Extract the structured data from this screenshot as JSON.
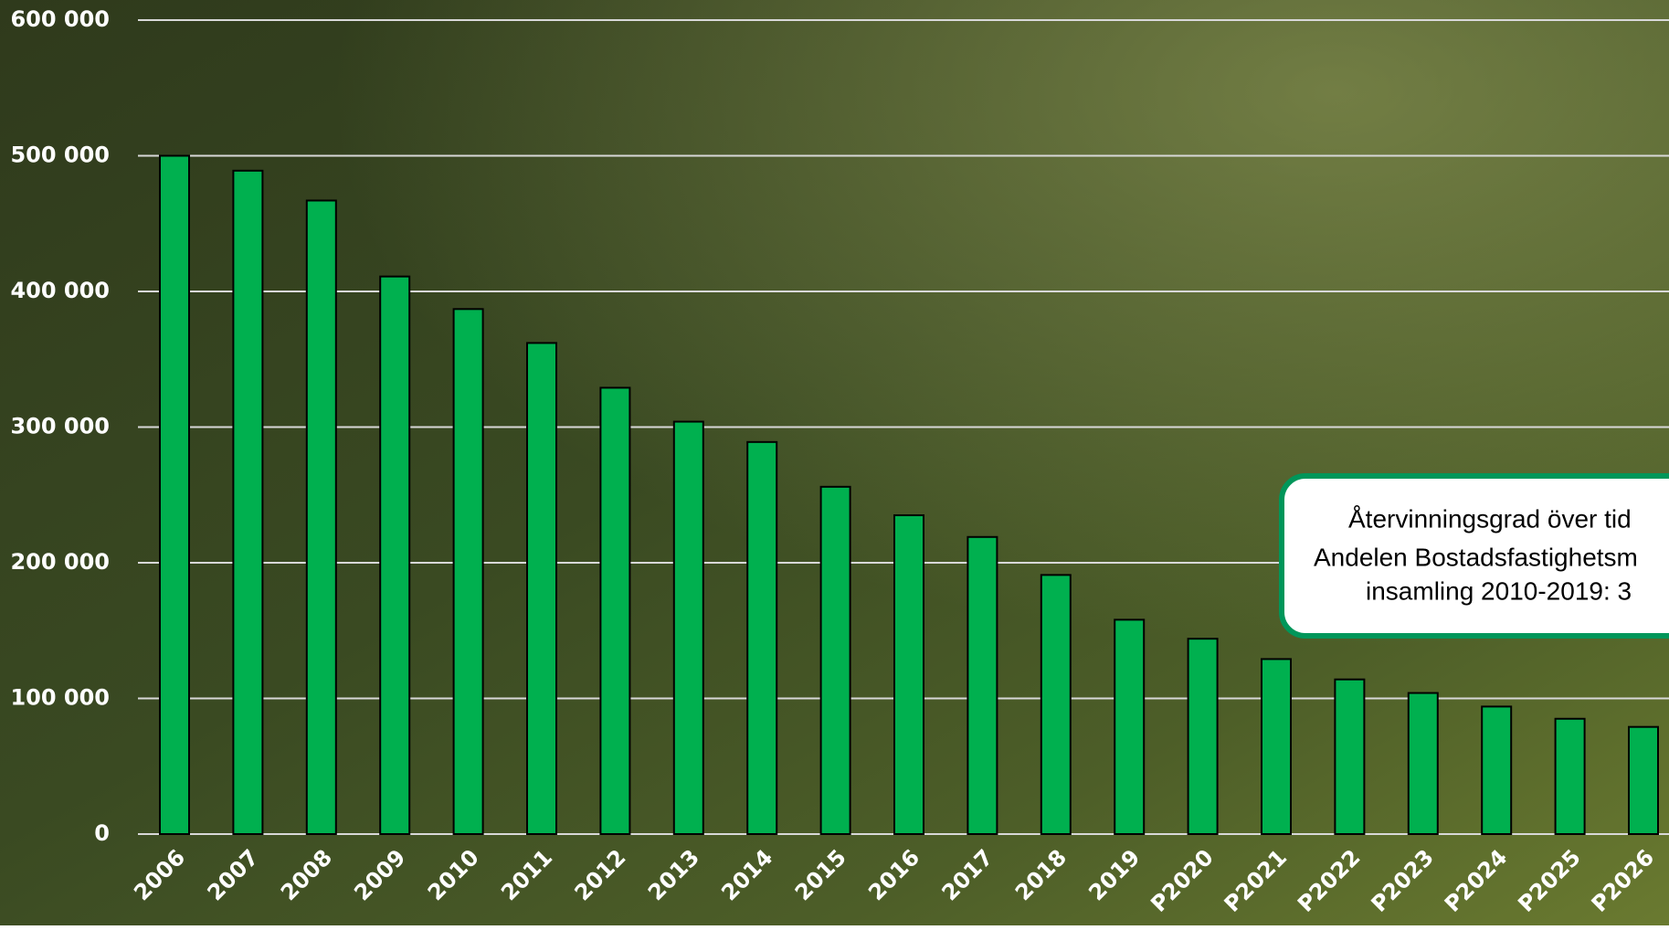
{
  "chart_data": {
    "type": "bar",
    "categories": [
      "2006",
      "2007",
      "2008",
      "2009",
      "2010",
      "2011",
      "2012",
      "2013",
      "2014",
      "2015",
      "2016",
      "2017",
      "2018",
      "2019",
      "P2020",
      "P2021",
      "P2022",
      "P2023",
      "P2024",
      "P2025",
      "P2026"
    ],
    "values": [
      500000,
      489000,
      467000,
      411000,
      387000,
      362000,
      329000,
      304000,
      289000,
      256000,
      235000,
      219000,
      191000,
      158000,
      144000,
      129000,
      114000,
      104000,
      94000,
      85000,
      79000
    ],
    "color": "#00b04f",
    "ylim": [
      0,
      600000
    ],
    "yticks": [
      0,
      {
        "value": 100000,
        "label": "100 000"
      },
      {
        "value": 200000,
        "label": "200 000"
      },
      {
        "value": 300000,
        "label": "300 000"
      },
      {
        "value": 400000,
        "label": "400 000"
      },
      {
        "value": 500000,
        "label": "500 000"
      },
      {
        "value": 600000,
        "label": "600 000"
      }
    ],
    "grid": true,
    "annotations": [
      "Återvinningsgrad över tid",
      "Andelen Bostadsfastighetsm",
      "insamling 2010-2019: 3"
    ]
  }
}
